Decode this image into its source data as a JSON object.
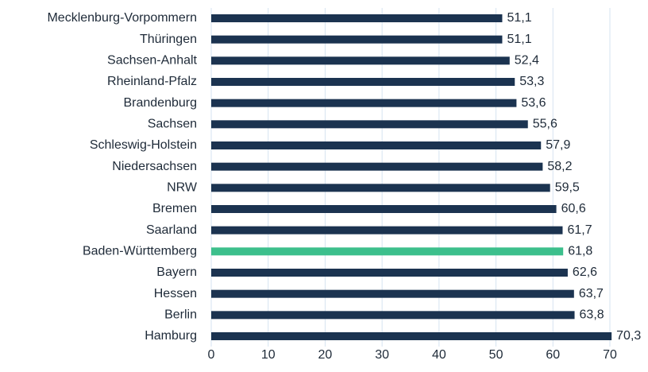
{
  "chart_data": {
    "type": "barh",
    "categories": [
      "Mecklenburg-Vorpommern",
      "Thüringen",
      "Sachsen-Anhalt",
      "Rheinland-Pfalz",
      "Brandenburg",
      "Sachsen",
      "Schleswig-Holstein",
      "Niedersachsen",
      "NRW",
      "Bremen",
      "Saarland",
      "Baden-Württemberg",
      "Bayern",
      "Hessen",
      "Berlin",
      "Hamburg"
    ],
    "values": [
      51.1,
      51.1,
      52.4,
      53.3,
      53.6,
      55.6,
      57.9,
      58.2,
      59.5,
      60.6,
      61.7,
      61.8,
      62.6,
      63.7,
      63.8,
      70.3
    ],
    "value_labels": [
      "51,1",
      "51,1",
      "52,4",
      "53,3",
      "53,6",
      "55,6",
      "57,9",
      "58,2",
      "59,5",
      "60,6",
      "61,7",
      "61,8",
      "62,6",
      "63,7",
      "63,8",
      "70,3"
    ],
    "colors": [
      "#1b3350",
      "#1b3350",
      "#1b3350",
      "#1b3350",
      "#1b3350",
      "#1b3350",
      "#1b3350",
      "#1b3350",
      "#1b3350",
      "#1b3350",
      "#1b3350",
      "#3cbf8c",
      "#1b3350",
      "#1b3350",
      "#1b3350",
      "#1b3350"
    ],
    "xlim": [
      0,
      70
    ],
    "xticks": [
      0,
      10,
      20,
      30,
      40,
      50,
      60,
      70
    ],
    "grid": true
  }
}
